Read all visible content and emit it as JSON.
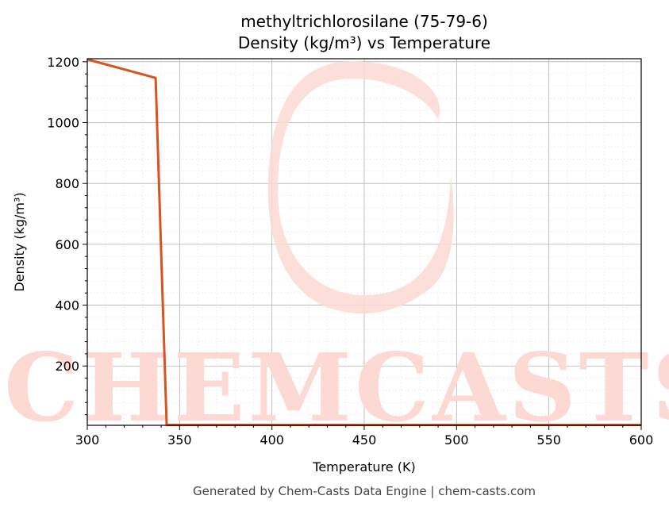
{
  "chart_data": {
    "type": "line",
    "title_line1": "methyltrichlorosilane (75-79-6)",
    "title_line2": "Density (kg/m³) vs Temperature",
    "xlabel": "Temperature (K)",
    "ylabel": "Density (kg/m³)",
    "xlim": [
      300,
      600
    ],
    "ylim": [
      5,
      1210
    ],
    "x_ticks": [
      300,
      350,
      400,
      450,
      500,
      550,
      600
    ],
    "y_ticks": [
      200,
      400,
      600,
      800,
      1000,
      1200
    ],
    "grid": true,
    "series": [
      {
        "color": "#d9531e",
        "x": [
          300,
          337,
          343,
          600
        ],
        "y": [
          1208,
          1147,
          6,
          6
        ]
      }
    ]
  },
  "watermark": {
    "text": "CHEMCASTS",
    "color": "#fcd9d2"
  },
  "footer": "Generated by Chem-Casts Data Engine | chem-casts.com"
}
